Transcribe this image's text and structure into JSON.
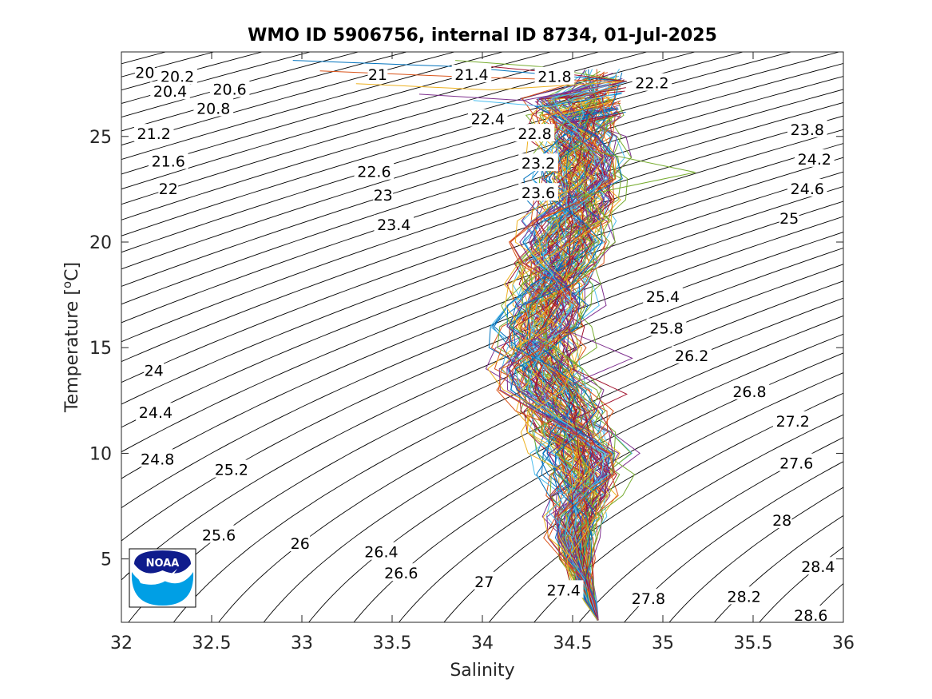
{
  "chart_data": {
    "type": "line",
    "title": "WMO ID 5906756, internal ID 8734, 01-Jul-2025",
    "xlabel": "Salinity",
    "ylabel": "Temperature [",
    "ylabel_super": "o",
    "ylabel_unit": "C]",
    "xlim": [
      32,
      36
    ],
    "ylim": [
      2,
      29
    ],
    "xticks": [
      "32",
      "32.5",
      "33",
      "33.5",
      "34",
      "34.5",
      "35",
      "35.5",
      "36"
    ],
    "yticks": [
      "5",
      "10",
      "15",
      "20",
      "25"
    ],
    "grid": false,
    "legend": "none",
    "density_contours": {
      "levels": [
        19.8,
        20,
        20.2,
        20.4,
        20.6,
        20.8,
        21,
        21.2,
        21.4,
        21.6,
        21.8,
        22,
        22.2,
        22.4,
        22.6,
        22.8,
        23,
        23.2,
        23.4,
        23.6,
        23.8,
        24,
        24.2,
        24.4,
        24.6,
        24.8,
        25,
        25.2,
        25.4,
        25.6,
        25.8,
        26,
        26.2,
        26.4,
        26.6,
        26.8,
        27,
        27.2,
        27.4,
        27.6,
        27.8,
        28,
        28.2,
        28.4,
        28.6,
        28.8,
        29
      ],
      "color": "#000000",
      "labels": [
        {
          "text": "20",
          "s": 32.13,
          "t": 28.0
        },
        {
          "text": "20.2",
          "s": 32.31,
          "t": 27.8
        },
        {
          "text": "20.4",
          "s": 32.27,
          "t": 27.1
        },
        {
          "text": "20.6",
          "s": 32.6,
          "t": 27.2
        },
        {
          "text": "20.8",
          "s": 32.51,
          "t": 26.3
        },
        {
          "text": "21",
          "s": 33.42,
          "t": 27.9
        },
        {
          "text": "21.2",
          "s": 32.18,
          "t": 25.1
        },
        {
          "text": "21.4",
          "s": 33.94,
          "t": 27.9
        },
        {
          "text": "21.6",
          "s": 32.26,
          "t": 23.8
        },
        {
          "text": "21.8",
          "s": 34.4,
          "t": 27.8
        },
        {
          "text": "22",
          "s": 32.26,
          "t": 22.5
        },
        {
          "text": "22.2",
          "s": 34.94,
          "t": 27.5
        },
        {
          "text": "22.4",
          "s": 34.03,
          "t": 25.8
        },
        {
          "text": "22.6",
          "s": 33.4,
          "t": 23.3
        },
        {
          "text": "22.8",
          "s": 34.29,
          "t": 25.1
        },
        {
          "text": "23",
          "s": 33.45,
          "t": 22.2
        },
        {
          "text": "23.2",
          "s": 34.31,
          "t": 23.7
        },
        {
          "text": "23.4",
          "s": 33.51,
          "t": 20.8
        },
        {
          "text": "23.6",
          "s": 34.31,
          "t": 22.3
        },
        {
          "text": "23.8",
          "s": 35.8,
          "t": 25.3
        },
        {
          "text": "24",
          "s": 32.18,
          "t": 13.9
        },
        {
          "text": "24.2",
          "s": 35.84,
          "t": 23.9
        },
        {
          "text": "24.4",
          "s": 32.19,
          "t": 11.9
        },
        {
          "text": "24.6",
          "s": 35.8,
          "t": 22.5
        },
        {
          "text": "24.8",
          "s": 32.2,
          "t": 9.7
        },
        {
          "text": "25",
          "s": 35.7,
          "t": 21.1
        },
        {
          "text": "25.2",
          "s": 32.61,
          "t": 9.2
        },
        {
          "text": "25.4",
          "s": 35.0,
          "t": 17.4
        },
        {
          "text": "25.6",
          "s": 32.54,
          "t": 6.1
        },
        {
          "text": "25.8",
          "s": 35.02,
          "t": 15.9
        },
        {
          "text": "26",
          "s": 32.99,
          "t": 5.7
        },
        {
          "text": "26.2",
          "s": 35.16,
          "t": 14.6
        },
        {
          "text": "26.4",
          "s": 33.44,
          "t": 5.3
        },
        {
          "text": "26.6",
          "s": 33.55,
          "t": 4.3
        },
        {
          "text": "26.8",
          "s": 35.48,
          "t": 12.9
        },
        {
          "text": "27",
          "s": 34.01,
          "t": 3.9
        },
        {
          "text": "27.2",
          "s": 35.72,
          "t": 11.5
        },
        {
          "text": "27.4",
          "s": 34.45,
          "t": 3.5
        },
        {
          "text": "27.6",
          "s": 35.74,
          "t": 9.5
        },
        {
          "text": "27.8",
          "s": 34.92,
          "t": 3.1
        },
        {
          "text": "28",
          "s": 35.66,
          "t": 6.8
        },
        {
          "text": "28.2",
          "s": 35.45,
          "t": 3.2
        },
        {
          "text": "28.4",
          "s": 35.86,
          "t": 4.6
        },
        {
          "text": "28.6",
          "s": 35.82,
          "t": 2.3
        }
      ]
    },
    "profiles": {
      "description_count": 130,
      "colors": [
        "#0072BD",
        "#D95319",
        "#EDB120",
        "#7E2F8E",
        "#77AC30",
        "#4DBEEE",
        "#A2142F"
      ],
      "mean_profile": [
        {
          "t": 2.1,
          "s": 34.64
        },
        {
          "t": 3.0,
          "s": 34.6
        },
        {
          "t": 4.0,
          "s": 34.56
        },
        {
          "t": 5.0,
          "s": 34.53
        },
        {
          "t": 6.0,
          "s": 34.51
        },
        {
          "t": 7.0,
          "s": 34.52
        },
        {
          "t": 8.0,
          "s": 34.55
        },
        {
          "t": 9.0,
          "s": 34.57
        },
        {
          "t": 10.0,
          "s": 34.56
        },
        {
          "t": 11.0,
          "s": 34.5
        },
        {
          "t": 12.0,
          "s": 34.45
        },
        {
          "t": 13.0,
          "s": 34.38
        },
        {
          "t": 14.0,
          "s": 34.32
        },
        {
          "t": 15.0,
          "s": 34.31
        },
        {
          "t": 16.0,
          "s": 34.34
        },
        {
          "t": 17.0,
          "s": 34.38
        },
        {
          "t": 18.0,
          "s": 34.41
        },
        {
          "t": 19.0,
          "s": 34.43
        },
        {
          "t": 20.0,
          "s": 34.45
        },
        {
          "t": 21.0,
          "s": 34.48
        },
        {
          "t": 22.0,
          "s": 34.52
        },
        {
          "t": 23.0,
          "s": 34.55
        },
        {
          "t": 24.0,
          "s": 34.56
        },
        {
          "t": 25.0,
          "s": 34.55
        },
        {
          "t": 26.0,
          "s": 34.53
        },
        {
          "t": 26.8,
          "s": 34.5
        }
      ],
      "surface_tails": [
        {
          "s0": 32.95,
          "t0": 28.6
        },
        {
          "s0": 33.1,
          "t0": 28.1
        },
        {
          "s0": 33.3,
          "t0": 27.5
        },
        {
          "s0": 33.65,
          "t0": 27.0
        },
        {
          "s0": 33.85,
          "t0": 28.6
        },
        {
          "s0": 33.95,
          "t0": 26.7
        },
        {
          "s0": 34.05,
          "t0": 28.3
        }
      ],
      "anomalies": [
        {
          "t": 14.5,
          "s": 34.83
        },
        {
          "t": 23.3,
          "s": 35.18
        },
        {
          "t": 7.2,
          "s": 34.37
        },
        {
          "t": 12.8,
          "s": 34.8
        }
      ]
    }
  },
  "logo": {
    "text": "NOAA",
    "colors": {
      "navy": "#0F1C8C",
      "sky": "#009FE5",
      "white": "#FFFFFF"
    }
  }
}
